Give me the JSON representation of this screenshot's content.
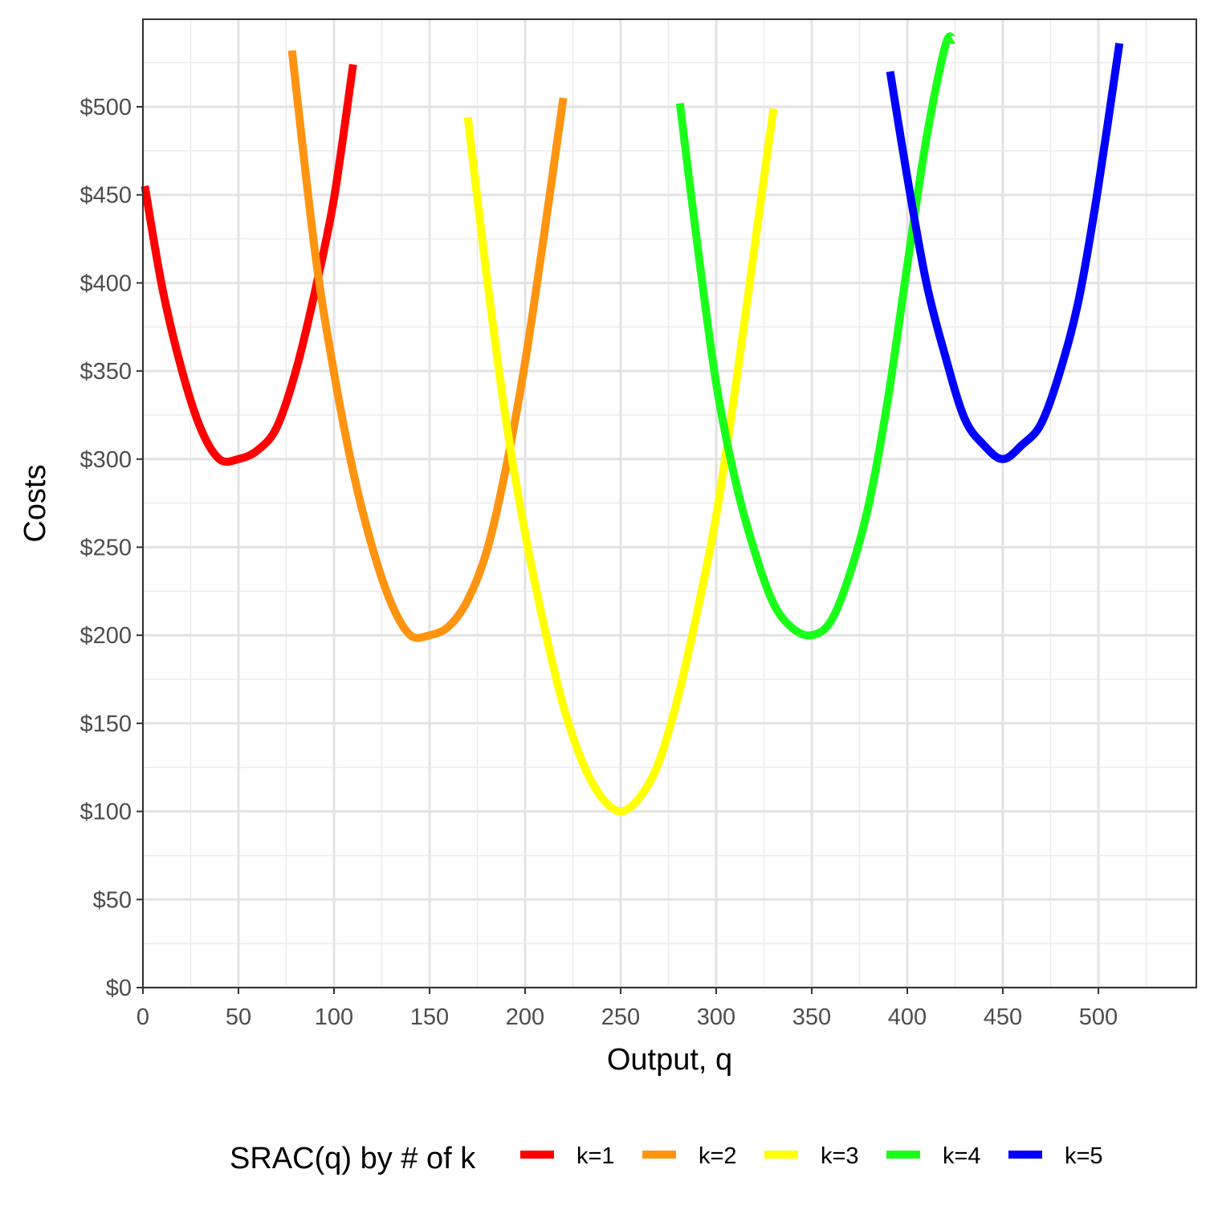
{
  "chart_data": {
    "type": "line",
    "xlabel": "Output, q",
    "ylabel": "Costs",
    "xlim": [
      0,
      550
    ],
    "ylim": [
      0,
      550
    ],
    "x_ticks": [
      0,
      50,
      100,
      150,
      200,
      250,
      300,
      350,
      400,
      450,
      500
    ],
    "x_tick_labels": [
      "0",
      "50",
      "100",
      "150",
      "200",
      "250",
      "300",
      "350",
      "400",
      "450",
      "500"
    ],
    "y_ticks": [
      0,
      50,
      100,
      150,
      200,
      250,
      300,
      350,
      400,
      450,
      500
    ],
    "y_tick_labels": [
      "$0",
      "$50",
      "$100",
      "$150",
      "$200",
      "$250",
      "$300",
      "$350",
      "$400",
      "$450",
      "$500"
    ],
    "grid": true,
    "legend": {
      "title": "SRAC(q) by # of k",
      "placement": "bottom"
    },
    "series": [
      {
        "name": "k=1",
        "color": "#ff0000",
        "x": [
          1,
          10,
          20,
          30,
          40,
          50,
          60,
          70,
          80,
          90,
          100,
          110
        ],
        "y": [
          455,
          398,
          352,
          318,
          300,
          300,
          305,
          318,
          350,
          395,
          448,
          524
        ]
      },
      {
        "name": "k=2",
        "color": "#ff9410",
        "x": [
          78,
          90,
          100,
          110,
          120,
          130,
          140,
          150,
          160,
          170,
          180,
          190,
          200,
          210,
          220
        ],
        "y": [
          532,
          418,
          349,
          293,
          250,
          218,
          200,
          200,
          205,
          220,
          248,
          295,
          355,
          428,
          505
        ]
      },
      {
        "name": "k=3",
        "color": "#ffff00",
        "x": [
          170,
          180,
          190,
          200,
          210,
          220,
          230,
          240,
          250,
          260,
          270,
          280,
          290,
          300,
          310,
          320,
          330
        ],
        "y": [
          494,
          403,
          322,
          258,
          205,
          160,
          128,
          108,
          100,
          108,
          128,
          165,
          213,
          268,
          340,
          420,
          499
        ]
      },
      {
        "name": "k=4",
        "color": "#1aff1a",
        "x": [
          281,
          290,
          300,
          310,
          320,
          330,
          340,
          350,
          360,
          370,
          380,
          390,
          400,
          410,
          420,
          424
        ],
        "y": [
          502,
          423,
          343,
          288,
          248,
          218,
          204,
          200,
          208,
          235,
          275,
          335,
          410,
          482,
          535,
          538
        ]
      },
      {
        "name": "k=5",
        "color": "#0000ff",
        "x": [
          391,
          400,
          410,
          420,
          430,
          440,
          450,
          460,
          470,
          480,
          490,
          500,
          511
        ],
        "y": [
          520,
          460,
          400,
          358,
          323,
          308,
          300,
          308,
          320,
          350,
          392,
          455,
          536
        ]
      }
    ]
  }
}
